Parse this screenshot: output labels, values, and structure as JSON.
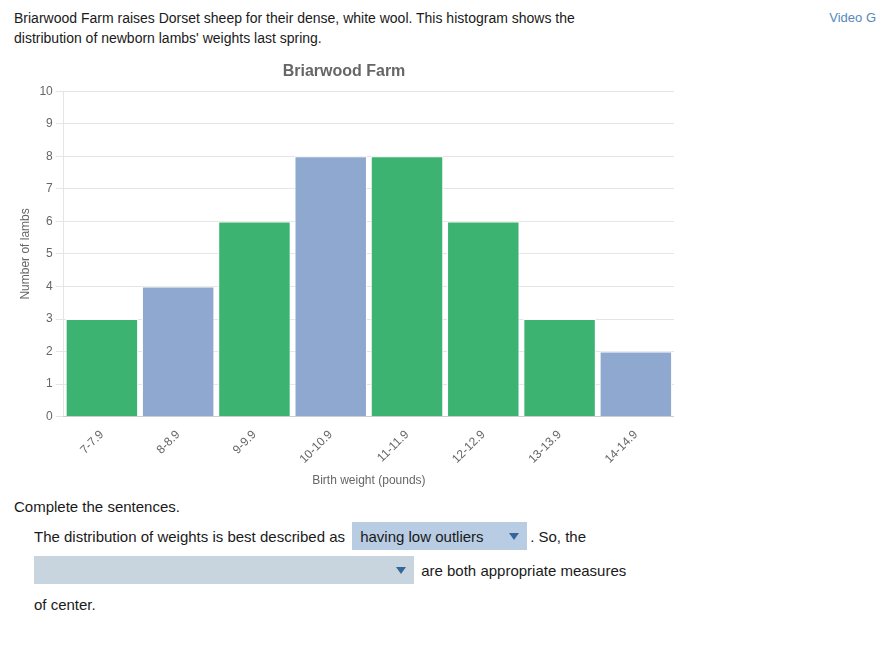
{
  "chart_data": {
    "type": "bar",
    "title": "Briarwood Farm",
    "xlabel": "Birth weight (pounds)",
    "ylabel": "Number of lambs",
    "categories": [
      "7-7.9",
      "8-8.9",
      "9-9.9",
      "10-10.9",
      "11-11.9",
      "12-12.9",
      "13-13.9",
      "14-14.9"
    ],
    "values": [
      3,
      4,
      6,
      8,
      8,
      6,
      3,
      2
    ],
    "colors": [
      "#3cb371",
      "#8fa8d0",
      "#3cb371",
      "#8fa8d0",
      "#3cb371",
      "#3cb371",
      "#3cb371",
      "#8fa8d0"
    ],
    "ylim": [
      0,
      10
    ],
    "yticks": [
      0,
      1,
      2,
      3,
      4,
      5,
      6,
      7,
      8,
      9,
      10
    ],
    "grid": true,
    "annotations": [
      "Briarwood Farm raises Dorset sheep for their dense, white wool. This histogram shows the",
      "distribution of newborn lambs' weights last spring.",
      "Video G",
      "Complete the sentences.",
      "The distribution of weights is best described as",
      "having low outliers",
      ". So, the",
      "are both appropriate measures",
      "of center."
    ]
  }
}
